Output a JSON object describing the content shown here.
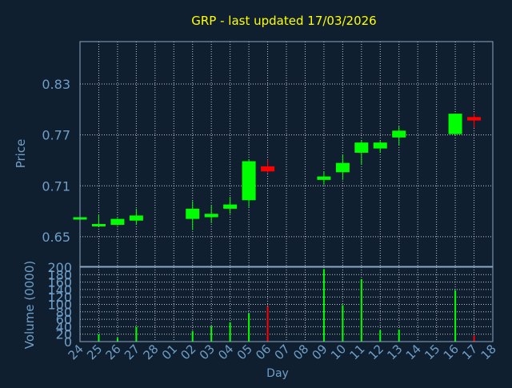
{
  "chart_data": [
    {
      "type": "candlestick",
      "title": "GRP - last updated 17/03/2026",
      "ylabel": "Price",
      "ylim": [
        0.615,
        0.88
      ],
      "yticks": [
        0.65,
        0.71,
        0.77,
        0.83
      ],
      "ytick_labels": [
        "0.65",
        "0.71",
        "0.77",
        "0.83"
      ],
      "grid": true,
      "colors": {
        "up": "#00ff00",
        "down": "#ff0000",
        "title": "#ffff00",
        "axis_text": "#6f9fc8",
        "background": "#0f1f30",
        "grid": "#ffffff"
      },
      "candles": [
        {
          "day": "24",
          "open": 0.672,
          "high": 0.673,
          "low": 0.672,
          "close": 0.673
        },
        {
          "day": "25",
          "open": 0.664,
          "high": 0.676,
          "low": 0.663,
          "close": 0.665
        },
        {
          "day": "26",
          "open": 0.664,
          "high": 0.672,
          "low": 0.663,
          "close": 0.671
        },
        {
          "day": "27",
          "open": 0.669,
          "high": 0.683,
          "low": 0.664,
          "close": 0.675
        },
        {
          "day": "02",
          "open": 0.671,
          "high": 0.692,
          "low": 0.658,
          "close": 0.683
        },
        {
          "day": "03",
          "open": 0.673,
          "high": 0.687,
          "low": 0.666,
          "close": 0.677
        },
        {
          "day": "04",
          "open": 0.683,
          "high": 0.697,
          "low": 0.677,
          "close": 0.688
        },
        {
          "day": "05",
          "open": 0.693,
          "high": 0.741,
          "low": 0.685,
          "close": 0.739
        },
        {
          "day": "06",
          "open": 0.733,
          "high": 0.741,
          "low": 0.725,
          "close": 0.727
        },
        {
          "day": "09",
          "open": 0.717,
          "high": 0.727,
          "low": 0.711,
          "close": 0.721
        },
        {
          "day": "10",
          "open": 0.726,
          "high": 0.747,
          "low": 0.717,
          "close": 0.737
        },
        {
          "day": "11",
          "open": 0.749,
          "high": 0.764,
          "low": 0.735,
          "close": 0.761
        },
        {
          "day": "12",
          "open": 0.754,
          "high": 0.763,
          "low": 0.749,
          "close": 0.761
        },
        {
          "day": "13",
          "open": 0.767,
          "high": 0.78,
          "low": 0.758,
          "close": 0.775
        },
        {
          "day": "16",
          "open": 0.771,
          "high": 0.795,
          "low": 0.77,
          "close": 0.795
        },
        {
          "day": "17",
          "open": 0.791,
          "high": 0.795,
          "low": 0.778,
          "close": 0.787
        }
      ]
    },
    {
      "type": "bar",
      "ylabel": "Volume (0000)",
      "xlabel": "Day",
      "ylim": [
        0,
        200
      ],
      "yticks": [
        0,
        20,
        40,
        60,
        80,
        100,
        120,
        140,
        160,
        180,
        200
      ],
      "ytick_labels": [
        "0",
        "20",
        "40",
        "60",
        "80",
        "100",
        "120",
        "140",
        "160",
        "180",
        "200"
      ],
      "grid": true,
      "categories": [
        "24",
        "25",
        "26",
        "27",
        "28",
        "01",
        "02",
        "03",
        "04",
        "05",
        "06",
        "07",
        "08",
        "09",
        "10",
        "11",
        "12",
        "13",
        "14",
        "15",
        "16",
        "17",
        "18"
      ],
      "values": [
        0,
        20,
        10,
        40,
        0,
        0,
        28,
        42,
        52,
        76,
        95,
        0,
        0,
        195,
        98,
        168,
        30,
        32,
        0,
        0,
        138,
        16,
        0
      ],
      "bar_colors": [
        "#00ff00",
        "#00ff00",
        "#00ff00",
        "#00ff00",
        "#00ff00",
        "#00ff00",
        "#00ff00",
        "#00ff00",
        "#00ff00",
        "#00ff00",
        "#ff0000",
        "#00ff00",
        "#00ff00",
        "#00ff00",
        "#00ff00",
        "#00ff00",
        "#00ff00",
        "#00ff00",
        "#00ff00",
        "#00ff00",
        "#00ff00",
        "#ff0000",
        "#00ff00"
      ]
    }
  ]
}
